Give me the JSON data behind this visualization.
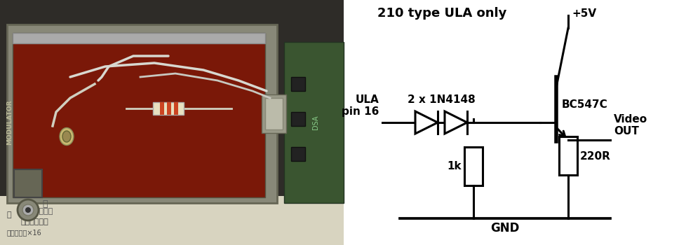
{
  "bg_color": "#ffffff",
  "circuit_bg": "#ffffff",
  "line_color": "#000000",
  "line_width": 2.2,
  "labels": {
    "title": "210 type ULA only",
    "ula": "ULA\npin 16",
    "diodes": "2 x 1N4148",
    "transistor": "BC547C",
    "r1": "1k",
    "r2": "220R",
    "vcc": "+5V",
    "gnd": "GND",
    "video": "Video\nOUT"
  },
  "font_size": 11,
  "title_font_size": 13,
  "photo": {
    "bg_outer": "#2e2e2c",
    "bg_green": "#c8d8b0",
    "metal_box_face": "#8b2010",
    "metal_box_edge": "#888880",
    "metal_frame": "#aaaaaa",
    "resistor_body": "#e8e0c8",
    "resistor_band1": "#cc4422",
    "resistor_band2": "#cc4422",
    "wire_color": "#e0e0d8",
    "pcb_green": "#3a6840"
  }
}
